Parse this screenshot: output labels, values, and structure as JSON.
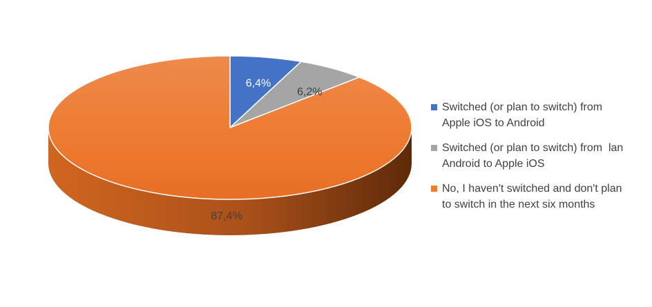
{
  "chart_data": {
    "type": "pie",
    "style": "3d",
    "title": "",
    "legend_position": "right",
    "slices": [
      {
        "label": "Switched (or plan to switch) from Apple iOS to Android",
        "value": 6.4,
        "display": "6,4%",
        "color": "#4472C4"
      },
      {
        "label": "Switched (or plan to switch) from  lan Android to Apple iOS",
        "value": 6.2,
        "display": "6,2%",
        "color": "#A5A5A5"
      },
      {
        "label": "No, I haven't switched and don't plan to switch in the next six months",
        "value": 87.4,
        "display": "87,4%",
        "color": "#ED7D31"
      }
    ],
    "legend_lines": [
      [
        "Switched (or plan to switch) from",
        "Apple iOS to Android"
      ],
      [
        "Switched (or plan to switch) from  lan",
        "Android to Apple iOS"
      ],
      [
        "No, I haven't switched and don't plan",
        "to switch in the next six months"
      ]
    ]
  }
}
